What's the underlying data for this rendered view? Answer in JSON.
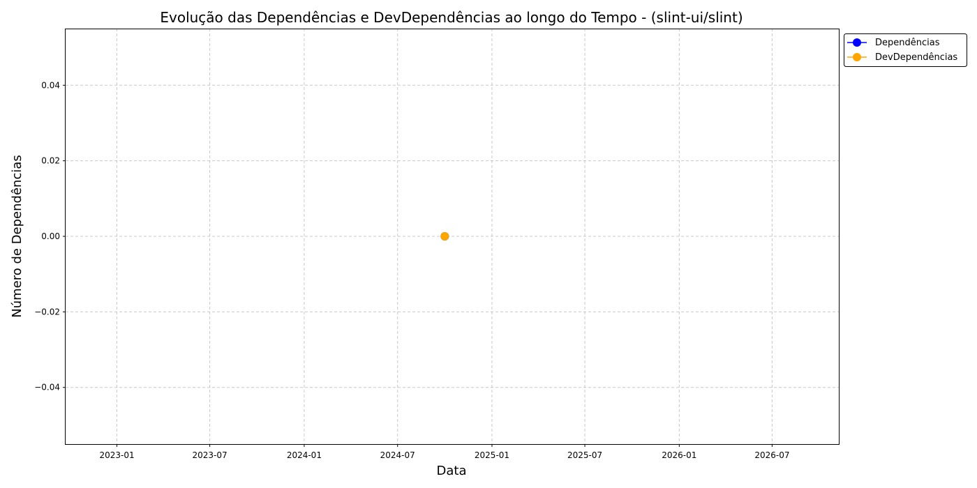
{
  "chart_data": {
    "type": "line",
    "title": "Evolução das Dependências e DevDependências ao longo do Tempo - (slint-ui/slint)",
    "xlabel": "Data",
    "ylabel": "Número de Dependências",
    "xlim": [
      "2022-09-23",
      "2026-11-08"
    ],
    "ylim": [
      -0.055,
      0.055
    ],
    "x_ticks": [
      "2023-01",
      "2023-07",
      "2024-01",
      "2024-07",
      "2025-01",
      "2025-07",
      "2026-01",
      "2026-07"
    ],
    "y_ticks": [
      -0.04,
      -0.02,
      0.0,
      0.02,
      0.04
    ],
    "y_tick_labels": [
      "−0.04",
      "−0.02",
      "0.00",
      "0.02",
      "0.04"
    ],
    "grid": true,
    "legend_position": "outside-top-right",
    "series": [
      {
        "name": "Dependências",
        "color": "#0000ff",
        "marker": "circle",
        "points": [
          {
            "x": "2024-10-01",
            "y": 0
          }
        ]
      },
      {
        "name": "DevDependências",
        "color": "#ffa500",
        "marker": "circle",
        "points": [
          {
            "x": "2024-10-01",
            "y": 0
          }
        ]
      }
    ]
  }
}
